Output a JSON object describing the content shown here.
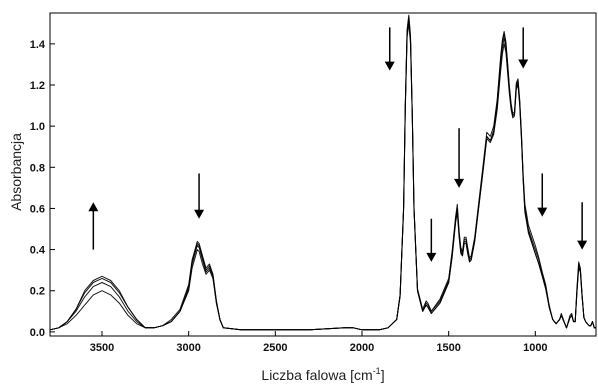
{
  "chart_data": {
    "type": "line",
    "title": "",
    "xlabel": "Liczba falowa [cm",
    "xlabel_sup": "-1",
    "xlabel_close": "]",
    "ylabel": "Absorbancja",
    "xlim": [
      3800,
      650
    ],
    "x_reversed": true,
    "ylim": [
      -0.02,
      1.55
    ],
    "grid": false,
    "legend": "none",
    "x_ticks": [
      3500,
      3000,
      2500,
      2000,
      1500,
      1000
    ],
    "x_tick_labels": [
      "3500",
      "3000",
      "2500",
      "2000",
      "1500",
      "1000"
    ],
    "y_ticks": [
      0.0,
      0.2,
      0.4,
      0.6,
      0.8,
      1.0,
      1.2,
      1.4
    ],
    "y_tick_labels": [
      "0.0",
      "0.2",
      "0.4",
      "0.6",
      "0.8",
      "1.0",
      "1.2",
      "1.4"
    ],
    "line_color": "#000000",
    "series": [
      {
        "x": [
          3800,
          3750,
          3700,
          3650,
          3600,
          3550,
          3500,
          3450,
          3400,
          3350,
          3300,
          3250,
          3200,
          3150,
          3100,
          3050,
          3000,
          2980,
          2960,
          2950,
          2940,
          2920,
          2900,
          2880,
          2860,
          2840,
          2820,
          2800,
          2700,
          2500,
          2300,
          2100,
          2050,
          2000,
          1900,
          1850,
          1800,
          1780,
          1760,
          1750,
          1740,
          1730,
          1720,
          1710,
          1700,
          1680,
          1650,
          1630,
          1620,
          1600,
          1550,
          1500,
          1480,
          1460,
          1450,
          1440,
          1430,
          1420,
          1410,
          1400,
          1390,
          1380,
          1370,
          1350,
          1300,
          1280,
          1260,
          1240,
          1220,
          1200,
          1190,
          1180,
          1170,
          1160,
          1150,
          1140,
          1130,
          1120,
          1110,
          1100,
          1090,
          1080,
          1070,
          1060,
          1050,
          1040,
          1000,
          980,
          960,
          950,
          940,
          920,
          900,
          880,
          860,
          850,
          830,
          820,
          800,
          790,
          780,
          770,
          760,
          750,
          740,
          730,
          720,
          710,
          700,
          690,
          680,
          670,
          660,
          650
        ],
        "y": [
          0.01,
          0.02,
          0.05,
          0.1,
          0.17,
          0.22,
          0.24,
          0.22,
          0.17,
          0.1,
          0.05,
          0.02,
          0.02,
          0.03,
          0.05,
          0.1,
          0.22,
          0.34,
          0.4,
          0.43,
          0.42,
          0.36,
          0.3,
          0.32,
          0.28,
          0.15,
          0.06,
          0.02,
          0.01,
          0.01,
          0.01,
          0.02,
          0.02,
          0.01,
          0.01,
          0.02,
          0.06,
          0.18,
          0.6,
          1.1,
          1.45,
          1.52,
          1.42,
          1.05,
          0.6,
          0.2,
          0.1,
          0.14,
          0.13,
          0.1,
          0.15,
          0.25,
          0.38,
          0.55,
          0.6,
          0.48,
          0.4,
          0.38,
          0.45,
          0.45,
          0.4,
          0.35,
          0.36,
          0.45,
          0.8,
          0.95,
          0.93,
          0.97,
          1.1,
          1.3,
          1.38,
          1.43,
          1.38,
          1.28,
          1.18,
          1.1,
          1.05,
          1.06,
          1.2,
          1.22,
          1.12,
          0.95,
          0.75,
          0.6,
          0.55,
          0.5,
          0.4,
          0.35,
          0.28,
          0.25,
          0.22,
          0.12,
          0.06,
          0.04,
          0.06,
          0.08,
          0.04,
          0.02,
          0.07,
          0.08,
          0.05,
          0.05,
          0.2,
          0.33,
          0.3,
          0.18,
          0.07,
          0.05,
          0.04,
          0.03,
          0.03,
          0.05,
          0.02,
          0.02
        ]
      },
      {
        "x": [
          3800,
          3750,
          3700,
          3650,
          3600,
          3550,
          3500,
          3450,
          3400,
          3350,
          3300,
          3250,
          3200,
          3150,
          3100,
          3050,
          3000,
          2980,
          2960,
          2950,
          2940,
          2920,
          2900,
          2880,
          2860,
          2840,
          2820,
          2800,
          2700,
          2500,
          2300,
          2100,
          2050,
          2000,
          1900,
          1850,
          1800,
          1780,
          1760,
          1750,
          1740,
          1730,
          1720,
          1710,
          1700,
          1680,
          1650,
          1630,
          1620,
          1600,
          1550,
          1500,
          1480,
          1460,
          1450,
          1440,
          1430,
          1420,
          1410,
          1400,
          1390,
          1380,
          1370,
          1350,
          1300,
          1280,
          1260,
          1240,
          1220,
          1200,
          1190,
          1180,
          1170,
          1160,
          1150,
          1140,
          1130,
          1120,
          1110,
          1100,
          1090,
          1080,
          1070,
          1060,
          1050,
          1040,
          1000,
          980,
          960,
          950,
          940,
          920,
          900,
          880,
          860,
          850,
          830,
          820,
          800,
          790,
          780,
          770,
          760,
          750,
          740,
          730,
          720,
          710,
          700,
          690,
          680,
          670,
          660,
          650
        ],
        "y": [
          0.01,
          0.02,
          0.05,
          0.11,
          0.19,
          0.24,
          0.26,
          0.24,
          0.19,
          0.12,
          0.06,
          0.02,
          0.02,
          0.03,
          0.05,
          0.1,
          0.21,
          0.33,
          0.39,
          0.42,
          0.41,
          0.35,
          0.29,
          0.31,
          0.27,
          0.14,
          0.06,
          0.02,
          0.01,
          0.01,
          0.01,
          0.02,
          0.02,
          0.01,
          0.01,
          0.02,
          0.06,
          0.18,
          0.6,
          1.1,
          1.46,
          1.53,
          1.43,
          1.05,
          0.6,
          0.2,
          0.1,
          0.13,
          0.12,
          0.09,
          0.14,
          0.24,
          0.37,
          0.54,
          0.59,
          0.47,
          0.39,
          0.37,
          0.44,
          0.44,
          0.39,
          0.34,
          0.35,
          0.44,
          0.8,
          0.95,
          0.93,
          0.98,
          1.12,
          1.33,
          1.41,
          1.45,
          1.4,
          1.3,
          1.19,
          1.1,
          1.05,
          1.06,
          1.19,
          1.21,
          1.11,
          0.94,
          0.74,
          0.59,
          0.54,
          0.49,
          0.38,
          0.33,
          0.27,
          0.24,
          0.21,
          0.12,
          0.06,
          0.04,
          0.06,
          0.08,
          0.04,
          0.02,
          0.07,
          0.08,
          0.05,
          0.05,
          0.19,
          0.32,
          0.29,
          0.17,
          0.07,
          0.05,
          0.04,
          0.03,
          0.03,
          0.05,
          0.02,
          0.02
        ]
      },
      {
        "x": [
          3800,
          3750,
          3700,
          3650,
          3600,
          3550,
          3500,
          3450,
          3400,
          3350,
          3300,
          3250,
          3200,
          3150,
          3100,
          3050,
          3000,
          2980,
          2960,
          2950,
          2940,
          2920,
          2900,
          2880,
          2860,
          2840,
          2820,
          2800,
          2700,
          2500,
          2300,
          2100,
          2050,
          2000,
          1900,
          1850,
          1800,
          1780,
          1760,
          1750,
          1740,
          1730,
          1720,
          1710,
          1700,
          1680,
          1650,
          1630,
          1620,
          1600,
          1550,
          1500,
          1480,
          1460,
          1450,
          1440,
          1430,
          1420,
          1410,
          1400,
          1390,
          1380,
          1370,
          1350,
          1300,
          1280,
          1260,
          1240,
          1220,
          1200,
          1190,
          1180,
          1170,
          1160,
          1150,
          1140,
          1130,
          1120,
          1110,
          1100,
          1090,
          1080,
          1070,
          1060,
          1050,
          1040,
          1000,
          980,
          960,
          950,
          940,
          920,
          900,
          880,
          860,
          850,
          830,
          820,
          800,
          790,
          780,
          770,
          760,
          750,
          740,
          730,
          720,
          710,
          700,
          690,
          680,
          670,
          660,
          650
        ],
        "y": [
          0.01,
          0.02,
          0.04,
          0.08,
          0.13,
          0.18,
          0.2,
          0.18,
          0.14,
          0.08,
          0.04,
          0.02,
          0.02,
          0.03,
          0.05,
          0.1,
          0.2,
          0.31,
          0.37,
          0.4,
          0.39,
          0.33,
          0.28,
          0.3,
          0.26,
          0.14,
          0.06,
          0.02,
          0.01,
          0.01,
          0.01,
          0.02,
          0.02,
          0.01,
          0.01,
          0.02,
          0.06,
          0.17,
          0.59,
          1.08,
          1.43,
          1.5,
          1.4,
          1.04,
          0.59,
          0.2,
          0.1,
          0.13,
          0.12,
          0.09,
          0.14,
          0.24,
          0.36,
          0.53,
          0.58,
          0.46,
          0.38,
          0.37,
          0.43,
          0.43,
          0.38,
          0.34,
          0.35,
          0.44,
          0.79,
          0.94,
          0.92,
          0.96,
          1.08,
          1.27,
          1.35,
          1.4,
          1.36,
          1.26,
          1.16,
          1.08,
          1.04,
          1.05,
          1.18,
          1.2,
          1.1,
          0.93,
          0.73,
          0.58,
          0.53,
          0.48,
          0.38,
          0.33,
          0.27,
          0.24,
          0.21,
          0.12,
          0.06,
          0.04,
          0.06,
          0.08,
          0.04,
          0.02,
          0.07,
          0.08,
          0.05,
          0.05,
          0.19,
          0.31,
          0.29,
          0.17,
          0.07,
          0.05,
          0.04,
          0.03,
          0.03,
          0.05,
          0.02,
          0.02
        ]
      },
      {
        "x": [
          3800,
          3750,
          3700,
          3650,
          3600,
          3550,
          3500,
          3450,
          3400,
          3350,
          3300,
          3250,
          3200,
          3150,
          3100,
          3050,
          3000,
          2980,
          2960,
          2950,
          2940,
          2920,
          2900,
          2880,
          2860,
          2840,
          2820,
          2800,
          2700,
          2500,
          2300,
          2100,
          2050,
          2000,
          1900,
          1850,
          1800,
          1780,
          1760,
          1750,
          1740,
          1730,
          1720,
          1710,
          1700,
          1680,
          1650,
          1630,
          1620,
          1600,
          1550,
          1500,
          1480,
          1460,
          1450,
          1440,
          1430,
          1420,
          1410,
          1400,
          1390,
          1380,
          1370,
          1350,
          1300,
          1280,
          1260,
          1240,
          1220,
          1200,
          1190,
          1180,
          1170,
          1160,
          1150,
          1140,
          1130,
          1120,
          1110,
          1100,
          1090,
          1080,
          1070,
          1060,
          1050,
          1040,
          1000,
          980,
          960,
          950,
          940,
          920,
          900,
          880,
          860,
          850,
          830,
          820,
          800,
          790,
          780,
          770,
          760,
          750,
          740,
          730,
          720,
          710,
          700,
          690,
          680,
          670,
          660,
          650
        ],
        "y": [
          0.01,
          0.02,
          0.05,
          0.11,
          0.2,
          0.25,
          0.27,
          0.25,
          0.2,
          0.12,
          0.06,
          0.02,
          0.02,
          0.03,
          0.06,
          0.11,
          0.23,
          0.35,
          0.41,
          0.44,
          0.43,
          0.37,
          0.31,
          0.33,
          0.28,
          0.15,
          0.06,
          0.02,
          0.01,
          0.01,
          0.01,
          0.02,
          0.02,
          0.01,
          0.01,
          0.02,
          0.06,
          0.18,
          0.61,
          1.11,
          1.47,
          1.54,
          1.44,
          1.06,
          0.61,
          0.21,
          0.11,
          0.15,
          0.14,
          0.1,
          0.16,
          0.26,
          0.39,
          0.56,
          0.62,
          0.49,
          0.41,
          0.39,
          0.46,
          0.46,
          0.41,
          0.36,
          0.37,
          0.46,
          0.82,
          0.97,
          0.95,
          1.0,
          1.13,
          1.34,
          1.42,
          1.46,
          1.41,
          1.31,
          1.2,
          1.11,
          1.06,
          1.07,
          1.21,
          1.23,
          1.13,
          0.96,
          0.76,
          0.62,
          0.57,
          0.52,
          0.42,
          0.36,
          0.29,
          0.26,
          0.23,
          0.13,
          0.06,
          0.04,
          0.06,
          0.09,
          0.04,
          0.02,
          0.08,
          0.09,
          0.05,
          0.05,
          0.21,
          0.34,
          0.31,
          0.18,
          0.07,
          0.05,
          0.04,
          0.03,
          0.03,
          0.05,
          0.02,
          0.02
        ]
      }
    ],
    "arrows": [
      {
        "x": 3550,
        "y_from": 0.4,
        "y_to": 0.63,
        "direction": "up"
      },
      {
        "x": 2940,
        "y_from": 0.77,
        "y_to": 0.55,
        "direction": "down"
      },
      {
        "x": 1840,
        "y_from": 1.48,
        "y_to": 1.27,
        "direction": "down"
      },
      {
        "x": 1600,
        "y_from": 0.55,
        "y_to": 0.34,
        "direction": "down"
      },
      {
        "x": 1440,
        "y_from": 0.99,
        "y_to": 0.7,
        "direction": "down"
      },
      {
        "x": 1070,
        "y_from": 1.48,
        "y_to": 1.28,
        "direction": "down"
      },
      {
        "x": 960,
        "y_from": 0.77,
        "y_to": 0.56,
        "direction": "down"
      },
      {
        "x": 730,
        "y_from": 0.63,
        "y_to": 0.4,
        "direction": "down"
      }
    ]
  }
}
